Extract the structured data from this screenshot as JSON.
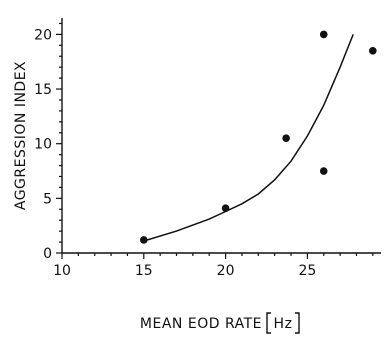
{
  "chart_data": {
    "type": "scatter",
    "title": "",
    "xlabel": "MEAN EOD RATE",
    "xlabel_unit": "Hz",
    "ylabel": "AGGRESSION INDEX",
    "xlim": [
      10,
      29.5
    ],
    "ylim": [
      0,
      21.5
    ],
    "x_ticks": [
      10,
      15,
      20,
      25
    ],
    "y_ticks": [
      0,
      5,
      10,
      15,
      20
    ],
    "grid": false,
    "points": [
      {
        "x": 15,
        "y": 1.2
      },
      {
        "x": 20,
        "y": 4.1
      },
      {
        "x": 23.7,
        "y": 10.5
      },
      {
        "x": 26,
        "y": 20
      },
      {
        "x": 26,
        "y": 7.5
      },
      {
        "x": 29,
        "y": 18.5
      }
    ],
    "fit_curve": {
      "type": "exponential-fit",
      "x": [
        15,
        17,
        19,
        20,
        21,
        22,
        23,
        24,
        25,
        26,
        27,
        27.8
      ],
      "y": [
        1.1,
        2.0,
        3.1,
        3.8,
        4.5,
        5.4,
        6.7,
        8.4,
        10.7,
        13.5,
        17.0,
        20.0
      ]
    }
  }
}
